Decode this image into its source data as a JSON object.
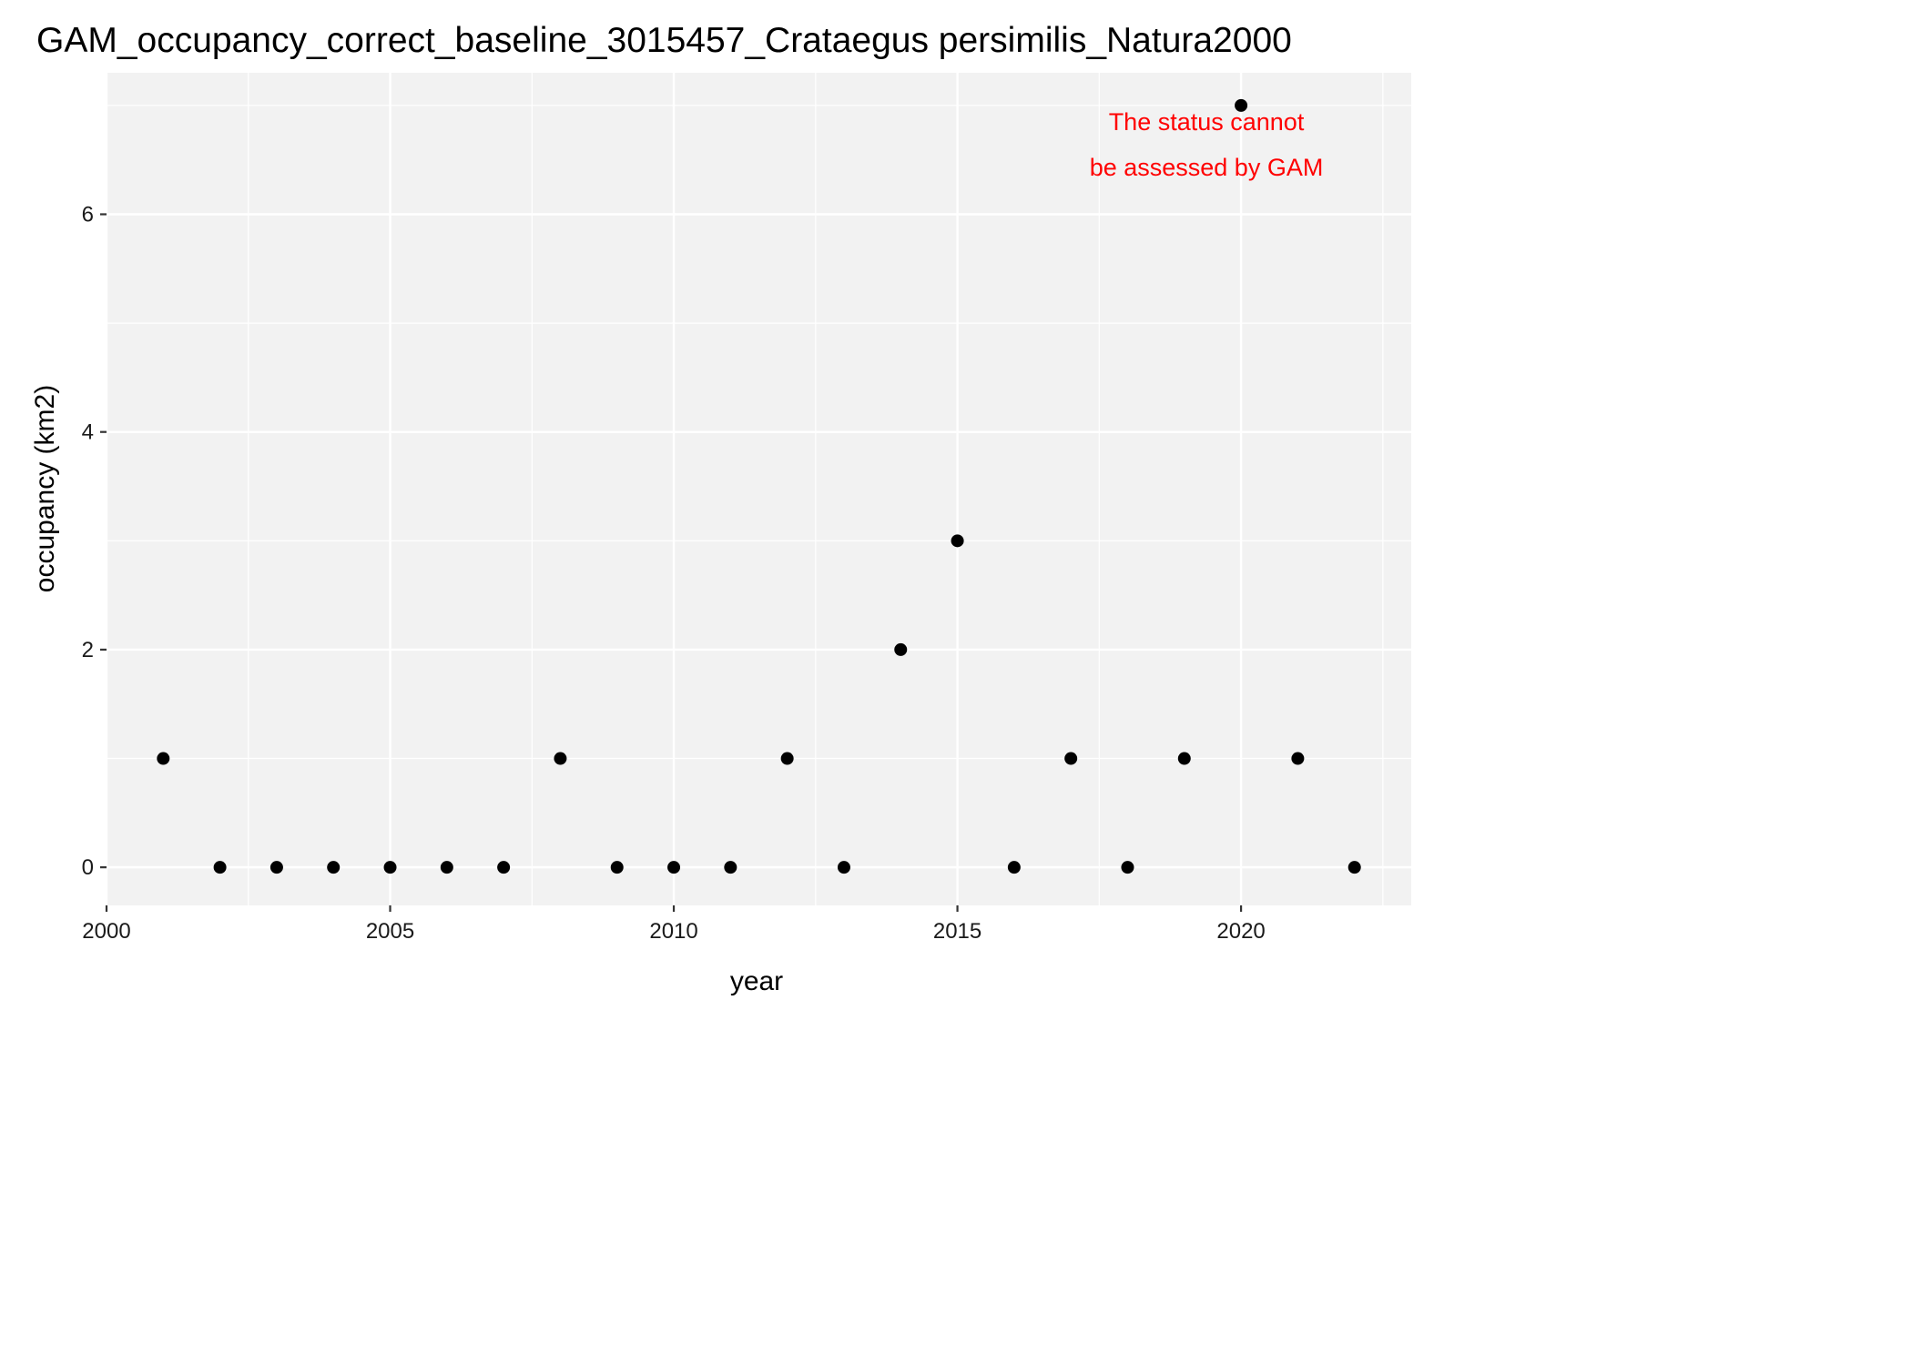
{
  "chart_data": {
    "type": "scatter",
    "title": "GAM_occupancy_correct_baseline_3015457_Crataegus persimilis_Natura2000",
    "xlabel": "year",
    "ylabel": "occupancy (km2)",
    "xlim": [
      2000,
      2023
    ],
    "ylim": [
      -0.35,
      7.3
    ],
    "x_ticks": [
      2000,
      2005,
      2010,
      2015,
      2020
    ],
    "y_ticks": [
      0,
      2,
      4,
      6
    ],
    "grid": true,
    "x": [
      2001,
      2002,
      2003,
      2004,
      2005,
      2006,
      2007,
      2008,
      2009,
      2010,
      2011,
      2012,
      2013,
      2014,
      2015,
      2016,
      2017,
      2018,
      2019,
      2020,
      2021,
      2022
    ],
    "y": [
      1,
      0,
      0,
      0,
      0,
      0,
      0,
      1,
      0,
      0,
      0,
      1,
      0,
      2,
      3,
      0,
      1,
      0,
      1,
      7,
      1,
      0
    ],
    "annotation": {
      "lines": [
        "The status cannot",
        "be assessed by GAM"
      ],
      "color": "#ff0000",
      "placement": "top-right"
    },
    "colors": {
      "panel_background": "#f2f2f2",
      "grid": "#ffffff",
      "point": "#000000",
      "tick": "#333333"
    }
  }
}
